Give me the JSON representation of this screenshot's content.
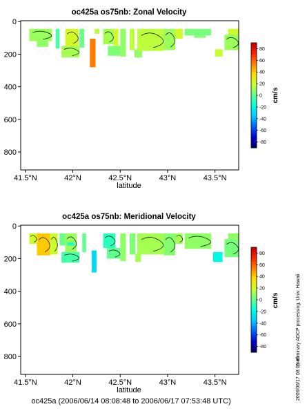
{
  "footer": "oc425a (2006/06/14 08:08:48 to 2006/06/17 07:53:48 UTC)",
  "side_note": "preliminary ADCP processing,  Univ. Hawaii",
  "side_date": "2006/06/17 08:05:45",
  "colormap": {
    "stops": [
      "#000060",
      "#0000d0",
      "#0060ff",
      "#00c8ff",
      "#00ffe0",
      "#60ff90",
      "#c8ff30",
      "#ffe000",
      "#ff8000",
      "#ff2000",
      "#c00000"
    ],
    "range": [
      -90,
      90
    ]
  },
  "chart_data": [
    {
      "type": "heatmap",
      "title": "oc425a os75nb: Zonal Velocity",
      "xlabel": "latitude",
      "ylabel": "",
      "x_ticks": [
        "41.5°N",
        "42°N",
        "42.5°N",
        "43°N",
        "43.5°N"
      ],
      "x_tick_values": [
        41.5,
        42.0,
        42.5,
        43.0,
        43.5
      ],
      "xlim": [
        41.45,
        43.75
      ],
      "y_ticks": [
        "0",
        "200",
        "400",
        "600",
        "800"
      ],
      "y_tick_values": [
        0,
        200,
        400,
        600,
        800
      ],
      "ylim": [
        910,
        -5
      ],
      "colorbar_label": "cm/s",
      "colorbar_ticks": [
        "80",
        "60",
        "40",
        "20",
        "0",
        "-20",
        "-40",
        "-60",
        "-80"
      ],
      "colorbar_tick_values": [
        80,
        60,
        40,
        20,
        0,
        -20,
        -40,
        -60,
        -80
      ],
      "cells": [
        {
          "lat": [
            41.54,
            41.78
          ],
          "depth": [
            45,
            120
          ],
          "value": 10
        },
        {
          "lat": [
            41.62,
            41.74
          ],
          "depth": [
            120,
            155
          ],
          "value": 8
        },
        {
          "lat": [
            41.82,
            41.86
          ],
          "depth": [
            45,
            165
          ],
          "value": -5
        },
        {
          "lat": [
            41.88,
            42.07
          ],
          "depth": [
            150,
            220
          ],
          "value": 12
        },
        {
          "lat": [
            41.92,
            42.06
          ],
          "depth": [
            45,
            150
          ],
          "value": 22
        },
        {
          "lat": [
            42.07,
            42.12
          ],
          "depth": [
            45,
            160
          ],
          "value": 2
        },
        {
          "lat": [
            42.18,
            42.24
          ],
          "depth": [
            105,
            280
          ],
          "value": 55
        },
        {
          "lat": [
            42.23,
            42.28
          ],
          "depth": [
            45,
            75
          ],
          "value": 15
        },
        {
          "lat": [
            42.32,
            42.43
          ],
          "depth": [
            45,
            140
          ],
          "value": 12
        },
        {
          "lat": [
            42.43,
            42.48
          ],
          "depth": [
            45,
            150
          ],
          "value": 20
        },
        {
          "lat": [
            42.37,
            42.5
          ],
          "depth": [
            150,
            210
          ],
          "value": 5
        },
        {
          "lat": [
            42.5,
            42.56
          ],
          "depth": [
            45,
            215
          ],
          "value": 8
        },
        {
          "lat": [
            42.6,
            42.65
          ],
          "depth": [
            45,
            175
          ],
          "value": 16
        },
        {
          "lat": [
            42.65,
            42.73
          ],
          "depth": [
            170,
            220
          ],
          "value": 8
        },
        {
          "lat": [
            42.68,
            42.96
          ],
          "depth": [
            45,
            180
          ],
          "value": 16
        },
        {
          "lat": [
            42.96,
            43.08
          ],
          "depth": [
            45,
            175
          ],
          "value": 10
        },
        {
          "lat": [
            43.08,
            43.16
          ],
          "depth": [
            45,
            105
          ],
          "value": 20
        },
        {
          "lat": [
            43.18,
            43.46
          ],
          "depth": [
            45,
            85
          ],
          "value": 4
        },
        {
          "lat": [
            43.28,
            43.4
          ],
          "depth": [
            85,
            100
          ],
          "value": 6
        },
        {
          "lat": [
            43.5,
            43.58
          ],
          "depth": [
            170,
            215
          ],
          "value": 18
        },
        {
          "lat": [
            43.6,
            43.75
          ],
          "depth": [
            80,
            175
          ],
          "value": 10
        },
        {
          "lat": [
            43.64,
            43.75
          ],
          "depth": [
            45,
            80
          ],
          "value": 20
        }
      ]
    },
    {
      "type": "heatmap",
      "title": "oc425a os75nb: Meridional Velocity",
      "xlabel": "latitude",
      "ylabel": "",
      "x_ticks": [
        "41.5°N",
        "42°N",
        "42.5°N",
        "43°N",
        "43.5°N"
      ],
      "x_tick_values": [
        41.5,
        42.0,
        42.5,
        43.0,
        43.5
      ],
      "xlim": [
        41.45,
        43.75
      ],
      "y_ticks": [
        "0",
        "200",
        "400",
        "600",
        "800"
      ],
      "y_tick_values": [
        0,
        200,
        400,
        600,
        800
      ],
      "ylim": [
        910,
        -5
      ],
      "colorbar_label": "cm/s",
      "colorbar_ticks": [
        "80",
        "60",
        "40",
        "20",
        "0",
        "-20",
        "-40",
        "-60",
        "-80"
      ],
      "colorbar_tick_values": [
        80,
        60,
        40,
        20,
        0,
        -20,
        -40,
        -60,
        -80
      ],
      "cells": [
        {
          "lat": [
            41.54,
            41.62
          ],
          "depth": [
            45,
            110
          ],
          "value": 20
        },
        {
          "lat": [
            41.62,
            41.76
          ],
          "depth": [
            45,
            180
          ],
          "value": 40
        },
        {
          "lat": [
            41.76,
            41.84
          ],
          "depth": [
            45,
            175
          ],
          "value": 20
        },
        {
          "lat": [
            41.86,
            41.92
          ],
          "depth": [
            45,
            120
          ],
          "value": 2
        },
        {
          "lat": [
            41.92,
            42.04
          ],
          "depth": [
            45,
            160
          ],
          "value": 10
        },
        {
          "lat": [
            41.94,
            42.02
          ],
          "depth": [
            100,
            120
          ],
          "value": -12
        },
        {
          "lat": [
            41.88,
            42.07
          ],
          "depth": [
            160,
            225
          ],
          "value": -5
        },
        {
          "lat": [
            42.1,
            42.14
          ],
          "depth": [
            45,
            160
          ],
          "value": 0
        },
        {
          "lat": [
            42.2,
            42.25
          ],
          "depth": [
            150,
            285
          ],
          "value": -30
        },
        {
          "lat": [
            42.32,
            42.45
          ],
          "depth": [
            45,
            135
          ],
          "value": -10
        },
        {
          "lat": [
            42.36,
            42.5
          ],
          "depth": [
            135,
            200
          ],
          "value": 0
        },
        {
          "lat": [
            42.5,
            42.56
          ],
          "depth": [
            45,
            215
          ],
          "value": 8
        },
        {
          "lat": [
            42.6,
            42.66
          ],
          "depth": [
            45,
            175
          ],
          "value": 5
        },
        {
          "lat": [
            42.66,
            42.72
          ],
          "depth": [
            170,
            220
          ],
          "value": 12
        },
        {
          "lat": [
            42.68,
            42.96
          ],
          "depth": [
            45,
            175
          ],
          "value": 12
        },
        {
          "lat": [
            42.96,
            43.08
          ],
          "depth": [
            45,
            180
          ],
          "value": 6
        },
        {
          "lat": [
            43.08,
            43.16
          ],
          "depth": [
            45,
            110
          ],
          "value": 12
        },
        {
          "lat": [
            43.18,
            43.46
          ],
          "depth": [
            45,
            140
          ],
          "value": 8
        },
        {
          "lat": [
            43.48,
            43.58
          ],
          "depth": [
            160,
            220
          ],
          "value": -20
        },
        {
          "lat": [
            43.6,
            43.75
          ],
          "depth": [
            80,
            190
          ],
          "value": 4
        },
        {
          "lat": [
            43.64,
            43.75
          ],
          "depth": [
            45,
            80
          ],
          "value": 8
        }
      ]
    }
  ]
}
